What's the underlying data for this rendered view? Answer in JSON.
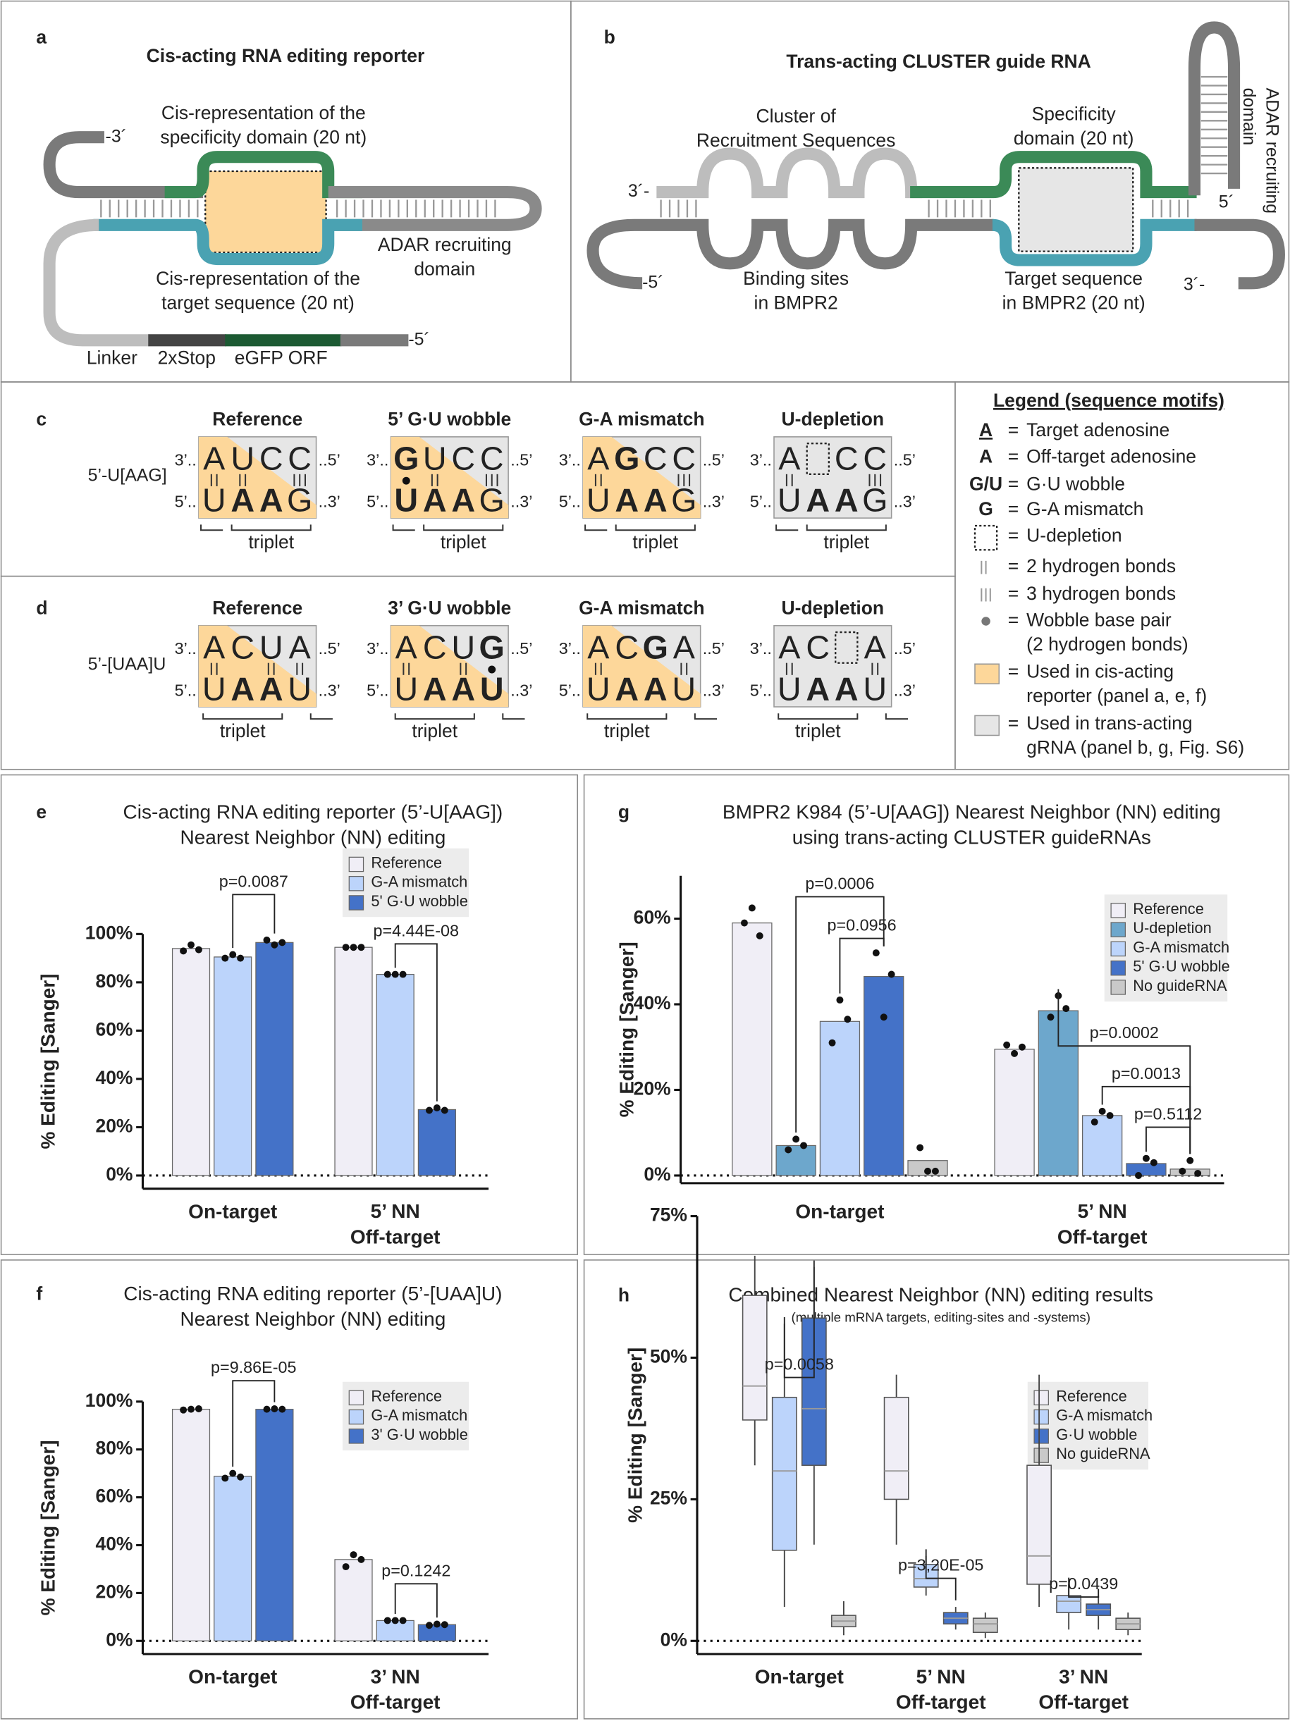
{
  "panel_a": {
    "label": "a",
    "title": "Cis-acting RNA editing reporter",
    "end_3": "-3´",
    "specificity": "Cis-representation of the\nspecificity domain (20 nt)",
    "adar": "ADAR recruiting\ndomain",
    "target": "Cis-representation of the\ntarget sequence (20 nt)",
    "linker": "Linker",
    "stop": "2xStop",
    "orf": "eGFP ORF",
    "end_5": "-5´"
  },
  "panel_b": {
    "label": "b",
    "title": "Trans-acting CLUSTER guide RNA",
    "cluster": "Cluster of\nRecruitment Sequences",
    "specificity": "Specificity\ndomain (20 nt)",
    "adar": "ADAR recruiting\ndomain",
    "guide_3": "3´-",
    "guide_5": "5´",
    "mrna_5": "-5´",
    "binding": "Binding sites\nin BMPR2",
    "target": "Target sequence\nin BMPR2 (20 nt)",
    "mrna_3": "3´-"
  },
  "motifs": {
    "strand_ends": [
      "3’..",
      "..5’",
      "5’..",
      "..3’"
    ],
    "triplet": "triplet",
    "rows": [
      {
        "label": "c",
        "motif": "5’-U[AAG]",
        "columns": [
          {
            "title": "Reference",
            "top": [
              "A",
              "U",
              "C",
              "C"
            ],
            "bottom": [
              "U",
              "A",
              "A",
              "G"
            ]
          },
          {
            "title": "5’ G·U wobble",
            "top": [
              "G",
              "U",
              "C",
              "C"
            ],
            "bottom": [
              "U",
              "A",
              "A",
              "G"
            ]
          },
          {
            "title": "G-A mismatch",
            "top": [
              "A",
              "G",
              "C",
              "C"
            ],
            "bottom": [
              "U",
              "A",
              "A",
              "G"
            ]
          },
          {
            "title": "U-depletion",
            "top": [
              "A",
              null,
              "C",
              "C"
            ],
            "bottom": [
              "U",
              "A",
              "A",
              "G"
            ]
          }
        ]
      },
      {
        "label": "d",
        "motif": "5’-[UAA]U",
        "columns": [
          {
            "title": "Reference",
            "top": [
              "A",
              "C",
              "U",
              "A"
            ],
            "bottom": [
              "U",
              "A",
              "A",
              "U"
            ]
          },
          {
            "title": "3’ G·U wobble",
            "top": [
              "A",
              "C",
              "U",
              "G"
            ],
            "bottom": [
              "U",
              "A",
              "A",
              "U"
            ]
          },
          {
            "title": "G-A mismatch",
            "top": [
              "A",
              "C",
              "G",
              "A"
            ],
            "bottom": [
              "U",
              "A",
              "A",
              "U"
            ]
          },
          {
            "title": "U-depletion",
            "top": [
              "A",
              "C",
              null,
              "A"
            ],
            "bottom": [
              "U",
              "A",
              "A",
              "U"
            ]
          }
        ]
      }
    ]
  },
  "legend": {
    "title": "Legend (sequence motifs)",
    "equals": "=",
    "items": [
      {
        "symbol": "A",
        "text": "Target adenosine"
      },
      {
        "symbol": "A",
        "text": "Off-target adenosine"
      },
      {
        "symbol": "G/U",
        "text": "G·U wobble"
      },
      {
        "symbol": "G",
        "text": "G-A mismatch"
      },
      {
        "symbol": null,
        "text": "U-depletion"
      },
      {
        "symbol": null,
        "text": "2 hydrogen bonds"
      },
      {
        "symbol": null,
        "text": "3 hydrogen bonds"
      },
      {
        "symbol": null,
        "text": "Wobble base pair\n(2 hydrogen bonds)"
      },
      {
        "symbol": null,
        "text": "Used in cis-acting\nreporter (panel a, e, f)"
      },
      {
        "symbol": null,
        "text": "Used in trans-acting\ngRNA (panel b, g, Fig. S6)"
      }
    ]
  },
  "chart_data": [
    {
      "type": "bar",
      "panel": "e",
      "title": "Cis-acting RNA editing reporter (5’-U[AAG])",
      "subtitle": "Nearest Neighbor (NN) editing",
      "y_label": "% Editing [Sanger]",
      "categories": [
        "On-target",
        "5’ NN\nOff-target"
      ],
      "ylim": [
        0,
        100
      ],
      "yticks": [
        {
          "value": 0,
          "label": "0%"
        },
        {
          "value": 20,
          "label": "20%"
        },
        {
          "value": 40,
          "label": "40%"
        },
        {
          "value": 60,
          "label": "60%"
        },
        {
          "value": 80,
          "label": "80%"
        },
        {
          "value": 100,
          "label": "100%"
        }
      ],
      "series": [
        {
          "name": "Reference",
          "color": "#f0eef6",
          "values": [
            94,
            94.5
          ],
          "points": [
            [
              93,
              95.5,
              93.5
            ],
            [
              94.5,
              94.5,
              94.5
            ]
          ]
        },
        {
          "name": "G-A mismatch",
          "color": "#bcd4fb",
          "values": [
            90.5,
            83.3
          ],
          "points": [
            [
              90,
              91.5,
              90
            ],
            [
              83.3,
              83.3,
              83.3
            ]
          ]
        },
        {
          "name": "5' G·U wobble",
          "color": "#4472c8",
          "values": [
            96.5,
            27.3
          ],
          "points": [
            [
              97.5,
              95.5,
              96.5
            ],
            [
              27,
              28,
              27
            ]
          ]
        }
      ],
      "annotations": [
        {
          "text": "p=0.0087",
          "series": [
            1,
            2
          ],
          "category": 0
        },
        {
          "text": "p=4.44E-08",
          "series": [
            1,
            2
          ],
          "category": 1
        }
      ]
    },
    {
      "type": "bar",
      "panel": "f",
      "title": "Cis-acting RNA editing reporter (5’-[UAA]U)",
      "subtitle": "Nearest Neighbor (NN) editing",
      "y_label": "% Editing [Sanger]",
      "categories": [
        "On-target",
        "3’ NN\nOff-target"
      ],
      "ylim": [
        0,
        100
      ],
      "yticks": [
        {
          "value": 0,
          "label": "0%"
        },
        {
          "value": 20,
          "label": "20%"
        },
        {
          "value": 40,
          "label": "40%"
        },
        {
          "value": 60,
          "label": "60%"
        },
        {
          "value": 80,
          "label": "80%"
        },
        {
          "value": 100,
          "label": "100%"
        }
      ],
      "series": [
        {
          "name": "Reference",
          "color": "#f0eef6",
          "values": [
            96.8,
            34
          ],
          "points": [
            [
              96.5,
              96.8,
              97
            ],
            [
              31,
              36,
              34
            ]
          ]
        },
        {
          "name": "G-A mismatch",
          "color": "#bcd4fb",
          "values": [
            68.8,
            8.5
          ],
          "points": [
            [
              68,
              70,
              68.5
            ],
            [
              8.5,
              8.5,
              8.5
            ]
          ]
        },
        {
          "name": "3' G·U wobble",
          "color": "#4472c8",
          "values": [
            96.8,
            6.8
          ],
          "points": [
            [
              96.8,
              97,
              96.8
            ],
            [
              6.5,
              7,
              6.8
            ]
          ]
        }
      ],
      "annotations": [
        {
          "text": "p=9.86E-05",
          "series": [
            1,
            2
          ],
          "category": 0
        },
        {
          "text": "p=0.1242",
          "series": [
            1,
            2
          ],
          "category": 1
        }
      ]
    },
    {
      "type": "bar",
      "panel": "g",
      "title": "BMPR2 K984 (5’-U[AAG]) Nearest Neighbor (NN) editing",
      "subtitle": "using trans-acting CLUSTER guideRNAs",
      "y_label": "% Editing [Sanger]",
      "categories": [
        "On-target",
        "5’ NN\nOff-target"
      ],
      "ylim": [
        0,
        70
      ],
      "yticks": [
        {
          "value": 0,
          "label": "0%"
        },
        {
          "value": 20,
          "label": "20%"
        },
        {
          "value": 40,
          "label": "40%"
        },
        {
          "value": 60,
          "label": "60%"
        }
      ],
      "series": [
        {
          "name": "Reference",
          "color": "#f0eef6",
          "values": [
            59,
            29.5
          ],
          "points": [
            [
              59,
              62.5,
              56
            ],
            [
              30.5,
              28.5,
              30
            ]
          ]
        },
        {
          "name": "U-depletion",
          "color": "#6da7cc",
          "values": [
            7,
            38.5
          ],
          "points": [
            [
              6,
              8.5,
              7
            ],
            [
              37,
              42,
              39
            ]
          ]
        },
        {
          "name": "G-A mismatch",
          "color": "#bcd4fb",
          "values": [
            36,
            14
          ],
          "points": [
            [
              31,
              41,
              36.5
            ],
            [
              12.5,
              15,
              14
            ]
          ]
        },
        {
          "name": "5' G·U wobble",
          "color": "#4472c8",
          "values": [
            46.5,
            2.8
          ],
          "points": [
            [
              52,
              37,
              47
            ],
            [
              0,
              4,
              3
            ]
          ]
        },
        {
          "name": "No  guideRNA",
          "color": "#c9c9c9",
          "values": [
            3.5,
            1.5
          ],
          "points": [
            [
              6.5,
              1,
              1
            ],
            [
              1,
              3.5,
              0.5
            ]
          ]
        }
      ],
      "annotations": [
        {
          "text": "p=0.0006",
          "series": [
            1,
            3
          ],
          "category": 0
        },
        {
          "text": "p=0.0956",
          "series": [
            2,
            3
          ],
          "category": 0
        },
        {
          "text": "p=0.0002",
          "series": [
            1,
            4
          ],
          "category": 1
        },
        {
          "text": "p=0.0013",
          "series": [
            2,
            4
          ],
          "category": 1
        },
        {
          "text": "p=0.5112",
          "series": [
            3,
            4
          ],
          "category": 1
        }
      ]
    },
    {
      "type": "box",
      "panel": "h",
      "title": "Combined Nearest Neighbor (NN) editing results",
      "subtitle": "(multiple mRNA targets, editing-sites and -systems)",
      "y_label": "% Editing [Sanger]",
      "categories": [
        "On-target",
        "5’ NN\nOff-target",
        "3’ NN\nOff-target"
      ],
      "ylim": [
        0,
        75
      ],
      "yticks": [
        {
          "value": 0,
          "label": "0%"
        },
        {
          "value": 25,
          "label": "25%"
        },
        {
          "value": 50,
          "label": "50%"
        },
        {
          "value": 75,
          "label": "75%"
        }
      ],
      "series": [
        {
          "name": "Reference",
          "color": "#f0eef6",
          "min": [
            31,
            17,
            6
          ],
          "q1": [
            39,
            25,
            10
          ],
          "median": [
            45,
            30,
            15
          ],
          "q3": [
            61,
            43,
            31
          ],
          "max": [
            68,
            47,
            47
          ]
        },
        {
          "name": "G-A mismatch",
          "color": "#bcd4fb",
          "min": [
            6,
            8,
            2
          ],
          "q1": [
            16,
            9.5,
            5
          ],
          "median": [
            30,
            11,
            7
          ],
          "q3": [
            43,
            13.5,
            8
          ],
          "max": [
            56,
            15,
            10
          ]
        },
        {
          "name": "G·U wobble",
          "color": "#4472c8",
          "min": [
            17,
            2,
            2
          ],
          "q1": [
            31,
            3,
            4.5
          ],
          "median": [
            41,
            4,
            5.5
          ],
          "q3": [
            57,
            5,
            6.5
          ],
          "max": [
            66,
            6,
            8
          ]
        },
        {
          "name": "No guideRNA",
          "color": "#c9c9c9",
          "min": [
            1,
            0.5,
            1
          ],
          "q1": [
            2.5,
            1.5,
            2
          ],
          "median": [
            3.5,
            3,
            3
          ],
          "q3": [
            4.5,
            4,
            4
          ],
          "max": [
            7,
            5,
            5
          ]
        }
      ],
      "annotations": [
        {
          "text": "p=0.0058",
          "series": [
            1,
            2
          ],
          "category": 0
        },
        {
          "text": "p=3,20E-05",
          "series": [
            1,
            2
          ],
          "category": 1
        },
        {
          "text": "p=0.0439",
          "series": [
            1,
            2
          ],
          "category": 2
        }
      ]
    }
  ]
}
